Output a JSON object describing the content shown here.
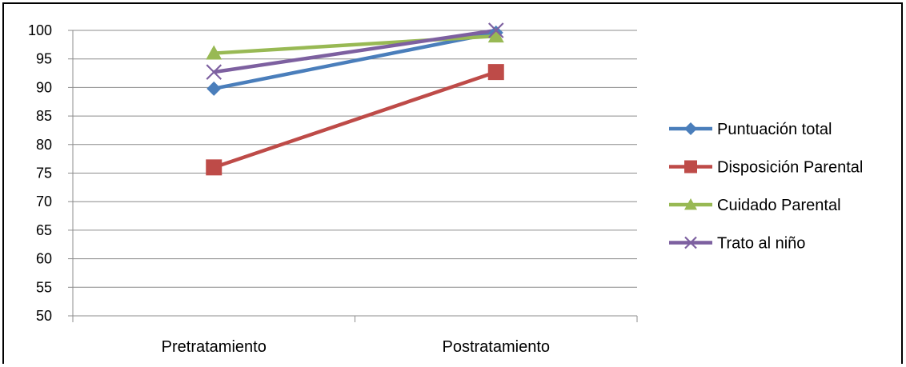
{
  "chart_data": {
    "type": "line",
    "categories": [
      "Pretratamiento",
      "Postratamiento"
    ],
    "ylim": [
      50,
      100
    ],
    "yticks": [
      50,
      55,
      60,
      65,
      70,
      75,
      80,
      85,
      90,
      95,
      100
    ],
    "grid": true,
    "legend_position": "right",
    "series": [
      {
        "name": "Puntuación total",
        "values": [
          89.8,
          99.6
        ],
        "color": "#4a7ebb",
        "marker": "diamond"
      },
      {
        "name": "Disposición Parental",
        "values": [
          76.0,
          92.7
        ],
        "color": "#be4b48",
        "marker": "square"
      },
      {
        "name": "Cuidado Parental",
        "values": [
          96.0,
          99.0
        ],
        "color": "#98b954",
        "marker": "triangle"
      },
      {
        "name": "Trato al niño",
        "values": [
          92.7,
          100.0
        ],
        "color": "#7d60a0",
        "marker": "x"
      }
    ]
  }
}
